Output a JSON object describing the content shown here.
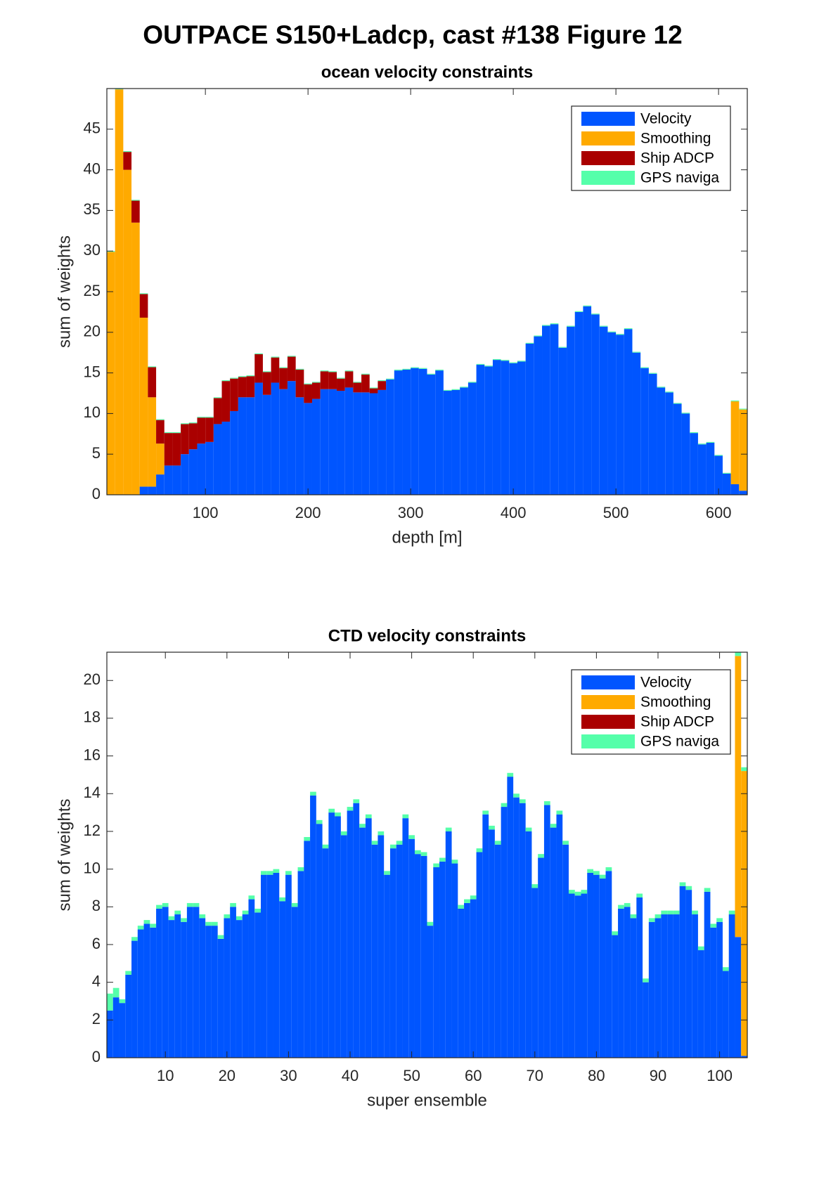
{
  "title": "OUTPACE S150+Ladcp, cast #138  Figure 12",
  "chart_data": [
    {
      "type": "bar",
      "stacked": true,
      "title": "ocean velocity constraints",
      "xlabel": "depth [m]",
      "ylabel": "sum of weights",
      "legend": "upper right",
      "x": [
        8,
        16,
        24,
        32,
        40,
        48,
        56,
        64,
        72,
        80,
        88,
        96,
        104,
        112,
        120,
        128,
        136,
        144,
        152,
        160,
        168,
        176,
        184,
        192,
        200,
        208,
        216,
        224,
        232,
        240,
        248,
        256,
        264,
        272,
        280,
        288,
        296,
        304,
        312,
        320,
        328,
        336,
        344,
        352,
        360,
        368,
        376,
        384,
        392,
        400,
        408,
        416,
        424,
        432,
        440,
        448,
        456,
        464,
        472,
        480,
        488,
        496,
        504,
        512,
        520,
        528,
        536,
        544,
        552,
        560,
        568,
        576,
        584,
        592,
        600,
        608,
        616,
        624
      ],
      "xlim": [
        4,
        628
      ],
      "ylim": [
        0,
        50
      ],
      "xticks": [
        100,
        200,
        300,
        400,
        500,
        600
      ],
      "yticks": [
        0,
        5,
        10,
        15,
        20,
        25,
        30,
        35,
        40,
        45
      ],
      "series": [
        {
          "name": "Velocity",
          "color": "#0055ff",
          "values": [
            0,
            0,
            0,
            0,
            1,
            1,
            2.5,
            3.6,
            3.6,
            5,
            5.6,
            6.3,
            6.5,
            8.7,
            9,
            10.3,
            12,
            12,
            13.8,
            12.3,
            13.8,
            13,
            14,
            12,
            11.3,
            11.8,
            13,
            13,
            12.8,
            13.2,
            12.6,
            12.6,
            12.5,
            12.9,
            14.2,
            15.3,
            15.4,
            15.6,
            15.5,
            14.8,
            15.3,
            12.8,
            12.9,
            13.2,
            13.8,
            16,
            15.8,
            16.6,
            16.5,
            16.2,
            16.4,
            18.6,
            19.5,
            20.8,
            21,
            18.1,
            20.7,
            22.5,
            23.2,
            22.2,
            20.7,
            20,
            19.7,
            20.4,
            17.5,
            15.6,
            14.9,
            13.2,
            12.6,
            11.2,
            10,
            7.6,
            6.2,
            6.4,
            4.8,
            2.6,
            1.3,
            0.5
          ]
        },
        {
          "name": "Smoothing",
          "color": "#ffaa00",
          "values": [
            29.9,
            49.9,
            40,
            33.5,
            20.8,
            11,
            3.8,
            0,
            0,
            0,
            0,
            0,
            0,
            0,
            0,
            0,
            0,
            0,
            0,
            0,
            0,
            0,
            0,
            0,
            0,
            0,
            0,
            0,
            0,
            0,
            0,
            0,
            0,
            0,
            0,
            0,
            0,
            0,
            0,
            0,
            0,
            0,
            0,
            0,
            0,
            0,
            0,
            0,
            0,
            0,
            0,
            0,
            0,
            0,
            0,
            0,
            0,
            0,
            0,
            0,
            0,
            0,
            0,
            0,
            0,
            0,
            0,
            0,
            0,
            0,
            0,
            0,
            0,
            0,
            0,
            0,
            10.2,
            10
          ]
        },
        {
          "name": "Ship ADCP",
          "color": "#aa0000",
          "values": [
            0,
            0,
            2.2,
            2.7,
            2.9,
            3.7,
            2.9,
            4,
            4,
            3.7,
            3.2,
            3.2,
            3,
            3.2,
            5,
            4,
            2.5,
            2.6,
            3.5,
            2.8,
            3.1,
            2.6,
            3,
            3.4,
            2.3,
            2,
            2.2,
            2.1,
            1.5,
            2,
            1.2,
            2.2,
            0.6,
            1.1,
            0,
            0,
            0,
            0,
            0,
            0,
            0,
            0,
            0,
            0,
            0,
            0,
            0,
            0,
            0,
            0,
            0,
            0,
            0,
            0,
            0,
            0,
            0,
            0,
            0,
            0,
            0,
            0,
            0,
            0,
            0,
            0,
            0,
            0,
            0,
            0,
            0,
            0,
            0,
            0,
            0,
            0,
            0,
            0
          ]
        },
        {
          "name": "GPS naviga",
          "color": "#55ffaa",
          "values": [
            0.1,
            0.1,
            0.1,
            0.1,
            0.1,
            0.1,
            0.1,
            0.1,
            0.1,
            0.1,
            0.1,
            0.1,
            0.1,
            0.1,
            0.1,
            0.1,
            0.1,
            0.1,
            0.1,
            0.1,
            0.1,
            0.1,
            0.1,
            0.1,
            0.1,
            0.1,
            0.1,
            0.1,
            0.1,
            0.1,
            0.1,
            0.1,
            0.1,
            0.1,
            0.1,
            0.1,
            0.1,
            0.1,
            0.1,
            0.1,
            0.1,
            0.1,
            0.1,
            0.1,
            0.1,
            0.1,
            0.1,
            0.1,
            0.1,
            0.1,
            0.1,
            0.1,
            0.1,
            0.1,
            0.1,
            0.1,
            0.1,
            0.1,
            0.1,
            0.1,
            0.1,
            0.1,
            0.1,
            0.1,
            0.1,
            0.1,
            0.1,
            0.1,
            0.1,
            0.1,
            0.1,
            0.1,
            0.1,
            0.1,
            0.1,
            0.1,
            0.1,
            0.1
          ]
        }
      ]
    },
    {
      "type": "bar",
      "stacked": true,
      "title": "CTD velocity constraints",
      "xlabel": "super ensemble",
      "ylabel": "sum of weights",
      "legend": "upper right",
      "x": [
        1,
        2,
        3,
        4,
        5,
        6,
        7,
        8,
        9,
        10,
        11,
        12,
        13,
        14,
        15,
        16,
        17,
        18,
        19,
        20,
        21,
        22,
        23,
        24,
        25,
        26,
        27,
        28,
        29,
        30,
        31,
        32,
        33,
        34,
        35,
        36,
        37,
        38,
        39,
        40,
        41,
        42,
        43,
        44,
        45,
        46,
        47,
        48,
        49,
        50,
        51,
        52,
        53,
        54,
        55,
        56,
        57,
        58,
        59,
        60,
        61,
        62,
        63,
        64,
        65,
        66,
        67,
        68,
        69,
        70,
        71,
        72,
        73,
        74,
        75,
        76,
        77,
        78,
        79,
        80,
        81,
        82,
        83,
        84,
        85,
        86,
        87,
        88,
        89,
        90,
        91,
        92,
        93,
        94,
        95,
        96,
        97,
        98,
        99,
        100,
        101,
        102,
        103,
        104
      ],
      "xlim": [
        0.5,
        104.5
      ],
      "ylim": [
        0,
        21.5
      ],
      "xticks": [
        10,
        20,
        30,
        40,
        50,
        60,
        70,
        80,
        90,
        100
      ],
      "yticks": [
        0,
        2,
        4,
        6,
        8,
        10,
        12,
        14,
        16,
        18,
        20
      ],
      "series": [
        {
          "name": "Velocity",
          "color": "#0055ff",
          "values": [
            2.5,
            3.2,
            2.9,
            4.4,
            6.2,
            6.8,
            7.1,
            6.9,
            7.9,
            8,
            7.3,
            7.6,
            7.2,
            8,
            8,
            7.4,
            7,
            7,
            6.3,
            7.4,
            8,
            7.3,
            7.6,
            8.4,
            7.7,
            9.7,
            9.7,
            9.8,
            8.3,
            9.7,
            8,
            9.9,
            11.5,
            13.9,
            12.4,
            11.1,
            13,
            12.8,
            11.8,
            13.1,
            13.5,
            12.2,
            12.7,
            11.3,
            11.8,
            9.7,
            11.1,
            11.3,
            12.7,
            11.6,
            10.8,
            10.7,
            7,
            10.1,
            10.4,
            12,
            10.3,
            7.9,
            8.2,
            8.4,
            10.9,
            12.9,
            12.1,
            11.3,
            13.3,
            14.9,
            13.8,
            13.5,
            12,
            9,
            10.6,
            13.4,
            12.2,
            12.9,
            11.3,
            8.7,
            8.6,
            8.7,
            9.8,
            9.7,
            9.5,
            9.9,
            6.5,
            7.9,
            8,
            7.4,
            8.5,
            4,
            7.2,
            7.4,
            7.6,
            7.6,
            7.6,
            9.1,
            8.9,
            7.6,
            5.7,
            8.8,
            6.9,
            7.2,
            4.6,
            7.6,
            6.4,
            0.1
          ]
        },
        {
          "name": "Smoothing",
          "color": "#ffaa00",
          "values": [
            0,
            0,
            0,
            0,
            0,
            0,
            0,
            0,
            0,
            0,
            0,
            0,
            0,
            0,
            0,
            0,
            0,
            0,
            0,
            0,
            0,
            0,
            0,
            0,
            0,
            0,
            0,
            0,
            0,
            0,
            0,
            0,
            0,
            0,
            0,
            0,
            0,
            0,
            0,
            0,
            0,
            0,
            0,
            0,
            0,
            0,
            0,
            0,
            0,
            0,
            0,
            0,
            0,
            0,
            0,
            0,
            0,
            0,
            0,
            0,
            0,
            0,
            0,
            0,
            0,
            0,
            0,
            0,
            0,
            0,
            0,
            0,
            0,
            0,
            0,
            0,
            0,
            0,
            0,
            0,
            0,
            0,
            0,
            0,
            0,
            0,
            0,
            0,
            0,
            0,
            0,
            0,
            0,
            0,
            0,
            0,
            0,
            0,
            0,
            0,
            0,
            0,
            14.9,
            15.1
          ]
        },
        {
          "name": "Ship ADCP",
          "color": "#aa0000",
          "values": [
            0,
            0,
            0,
            0,
            0,
            0,
            0,
            0,
            0,
            0,
            0,
            0,
            0,
            0,
            0,
            0,
            0,
            0,
            0,
            0,
            0,
            0,
            0,
            0,
            0,
            0,
            0,
            0,
            0,
            0,
            0,
            0,
            0,
            0,
            0,
            0,
            0,
            0,
            0,
            0,
            0,
            0,
            0,
            0,
            0,
            0,
            0,
            0,
            0,
            0,
            0,
            0,
            0,
            0,
            0,
            0,
            0,
            0,
            0,
            0,
            0,
            0,
            0,
            0,
            0,
            0,
            0,
            0,
            0,
            0,
            0,
            0,
            0,
            0,
            0,
            0,
            0,
            0,
            0,
            0,
            0,
            0,
            0,
            0,
            0,
            0,
            0,
            0,
            0,
            0,
            0,
            0,
            0,
            0,
            0,
            0,
            0,
            0,
            0,
            0,
            0,
            0,
            0,
            0
          ]
        },
        {
          "name": "GPS naviga",
          "color": "#55ffaa",
          "values": [
            0.9,
            0.5,
            0.2,
            0.2,
            0.2,
            0.2,
            0.2,
            0.2,
            0.2,
            0.2,
            0.2,
            0.2,
            0.2,
            0.2,
            0.2,
            0.2,
            0.2,
            0.2,
            0.2,
            0.2,
            0.2,
            0.2,
            0.2,
            0.2,
            0.2,
            0.2,
            0.2,
            0.2,
            0.2,
            0.2,
            0.2,
            0.2,
            0.2,
            0.2,
            0.2,
            0.2,
            0.2,
            0.2,
            0.2,
            0.2,
            0.2,
            0.2,
            0.2,
            0.2,
            0.2,
            0.2,
            0.2,
            0.2,
            0.2,
            0.2,
            0.2,
            0.2,
            0.2,
            0.2,
            0.2,
            0.2,
            0.2,
            0.2,
            0.2,
            0.2,
            0.2,
            0.2,
            0.2,
            0.2,
            0.2,
            0.2,
            0.2,
            0.2,
            0.2,
            0.2,
            0.2,
            0.2,
            0.2,
            0.2,
            0.2,
            0.2,
            0.2,
            0.2,
            0.2,
            0.2,
            0.2,
            0.2,
            0.2,
            0.2,
            0.2,
            0.2,
            0.2,
            0.2,
            0.2,
            0.2,
            0.2,
            0.2,
            0.2,
            0.2,
            0.2,
            0.2,
            0.2,
            0.2,
            0.2,
            0.2,
            0.2,
            0.2,
            0.2,
            0.2
          ]
        }
      ]
    }
  ]
}
